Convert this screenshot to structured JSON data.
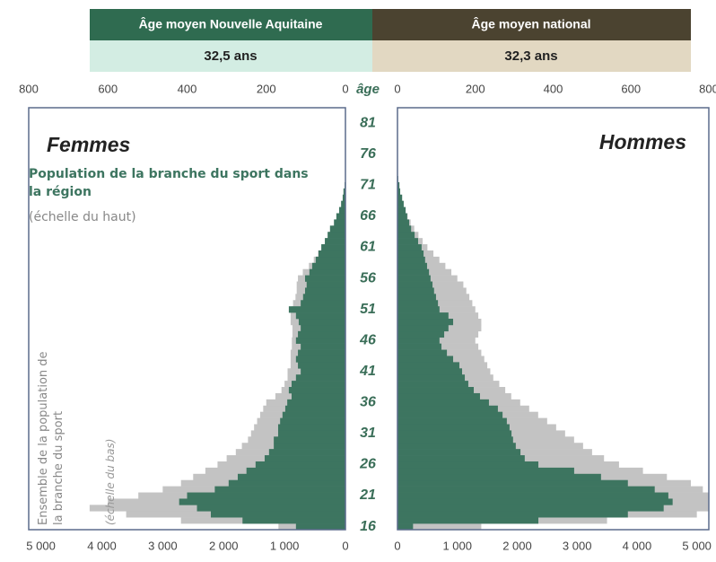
{
  "chart_data": {
    "type": "pyramid",
    "header": {
      "region": {
        "label": "Âge moyen Nouvelle Aquitaine",
        "value": "32,5 ans"
      },
      "national": {
        "label": "Âge moyen national",
        "value": "32,3 ans"
      }
    },
    "panels": [
      "Femmes",
      "Hommes"
    ],
    "age_label": "âge",
    "categories": [
      16,
      17,
      18,
      19,
      20,
      21,
      22,
      23,
      24,
      25,
      26,
      27,
      28,
      29,
      30,
      31,
      32,
      33,
      34,
      35,
      36,
      37,
      38,
      39,
      40,
      41,
      42,
      43,
      44,
      45,
      46,
      47,
      48,
      49,
      50,
      51,
      52,
      53,
      54,
      55,
      56,
      57,
      58,
      59,
      60,
      61,
      62,
      63,
      64,
      65,
      66,
      67,
      68,
      69,
      70,
      71,
      72
    ],
    "ylim": [
      15.5,
      83.5
    ],
    "yticks": [
      16,
      21,
      26,
      31,
      36,
      41,
      46,
      51,
      56,
      61,
      66,
      71,
      76,
      81
    ],
    "top_axis": {
      "xlim": [
        0,
        800
      ],
      "xticks": [
        0,
        200,
        400,
        600,
        800
      ]
    },
    "bottom_axis": {
      "xlim": [
        0,
        5200
      ],
      "xticks": [
        0,
        {
          "value": 1000,
          "label": "1 000"
        },
        {
          "value": 2000,
          "label": "2 000"
        },
        {
          "value": 3000,
          "label": "3 000"
        },
        {
          "value": 4000,
          "label": "4 000"
        },
        {
          "value": 5000,
          "label": "5 000"
        }
      ]
    },
    "series": [
      {
        "name": "Ensemble de la population de la branche du sport",
        "note": "(échelle du bas)",
        "axis": "bottom",
        "color": "#c3c3c3",
        "values": [
          [
            1100,
            2700,
            3600,
            4200,
            3900,
            3400,
            3000,
            2700,
            2500,
            2300,
            2100,
            1950,
            1800,
            1700,
            1600,
            1550,
            1500,
            1450,
            1400,
            1350,
            1300,
            1150,
            1050,
            1000,
            950,
            950,
            900,
            900,
            900,
            880,
            880,
            870,
            870,
            900,
            900,
            880,
            860,
            820,
            800,
            800,
            780,
            700,
            600,
            520,
            450,
            390,
            330,
            270,
            220,
            170,
            120,
            80,
            50,
            30,
            20,
            10,
            0
          ],
          [
            1400,
            3500,
            5000,
            5200,
            5200,
            5200,
            5100,
            4900,
            4500,
            4100,
            3700,
            3450,
            3250,
            3100,
            2950,
            2800,
            2650,
            2500,
            2350,
            2200,
            2050,
            1900,
            1800,
            1700,
            1600,
            1550,
            1500,
            1450,
            1400,
            1350,
            1300,
            1350,
            1400,
            1400,
            1350,
            1300,
            1250,
            1200,
            1150,
            1100,
            1000,
            900,
            800,
            700,
            600,
            500,
            420,
            350,
            280,
            220,
            170,
            130,
            90,
            60,
            40,
            20,
            10
          ]
        ]
      },
      {
        "name": "Population de la branche du sport dans la région",
        "note": "(échelle du haut)",
        "axis": "top",
        "color": "#3d7560",
        "values": [
          [
            125,
            260,
            340,
            375,
            420,
            400,
            330,
            295,
            272,
            250,
            227,
            204,
            193,
            181,
            181,
            170,
            170,
            165,
            159,
            152,
            147,
            136,
            143,
            136,
            125,
            113,
            120,
            125,
            120,
            113,
            125,
            120,
            113,
            118,
            125,
            143,
            113,
            107,
            102,
            98,
            102,
            91,
            84,
            75,
            68,
            61,
            52,
            45,
            39,
            29,
            23,
            16,
            11,
            7,
            5,
            2,
            0
          ],
          [
            40,
            362,
            592,
            684,
            707,
            696,
            661,
            592,
            523,
            454,
            362,
            327,
            316,
            304,
            297,
            293,
            288,
            281,
            270,
            258,
            235,
            212,
            196,
            182,
            173,
            166,
            159,
            143,
            127,
            113,
            108,
            120,
            131,
            143,
            131,
            108,
            104,
            99,
            94,
            90,
            85,
            81,
            76,
            71,
            67,
            62,
            53,
            44,
            35,
            30,
            25,
            21,
            16,
            12,
            7,
            5,
            2
          ]
        ]
      }
    ]
  }
}
